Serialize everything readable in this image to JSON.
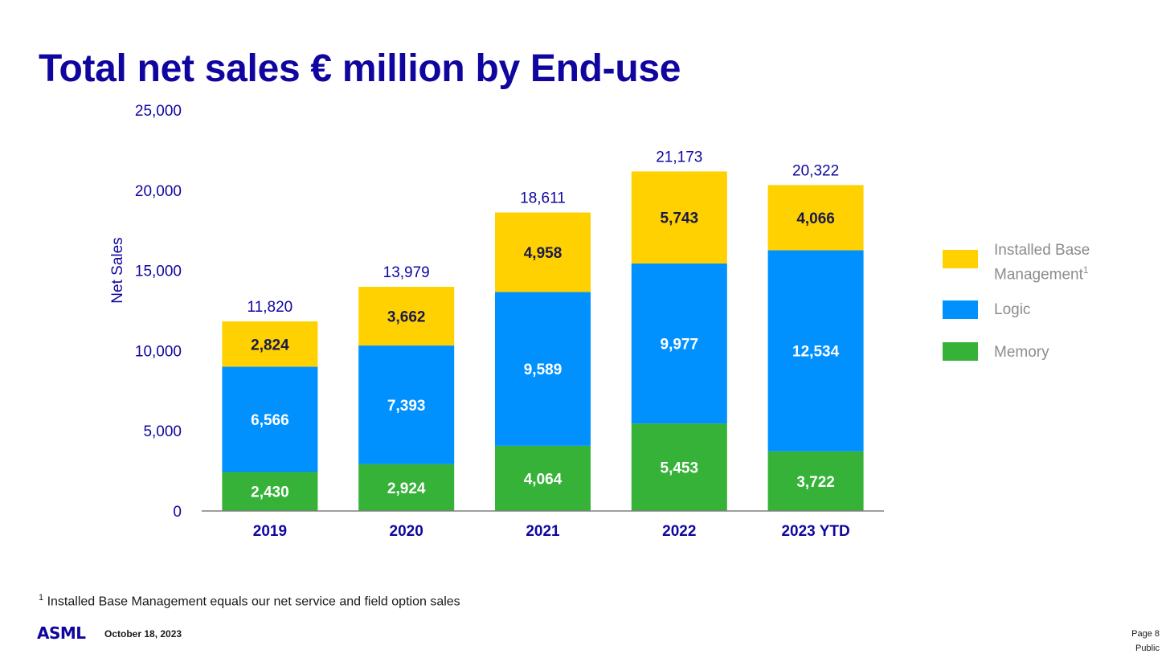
{
  "title": "Total net sales € million by End-use",
  "chart_data": {
    "type": "bar",
    "stacked": true,
    "categories": [
      "2019",
      "2020",
      "2021",
      "2022",
      "2023 YTD"
    ],
    "series": [
      {
        "name": "Memory",
        "values": [
          2430,
          2924,
          4064,
          5453,
          3722
        ],
        "color": "#35b237",
        "label_color": "#ffffff"
      },
      {
        "name": "Logic",
        "values": [
          6566,
          7393,
          9589,
          9977,
          12534
        ],
        "color": "#0091ff",
        "label_color": "#ffffff"
      },
      {
        "name": "Installed Base Management",
        "values": [
          2824,
          3662,
          4958,
          5743,
          4066
        ],
        "color": "#ffd100",
        "label_color": "#1a1a4a"
      }
    ],
    "value_labels": [
      [
        "2,430",
        "2,924",
        "4,064",
        "5,453",
        "3,722"
      ],
      [
        "6,566",
        "7,393",
        "9,589",
        "9,977",
        "12,534"
      ],
      [
        "2,824",
        "3,662",
        "4,958",
        "5,743",
        "4,066"
      ]
    ],
    "totals": [
      11820,
      13979,
      18611,
      21173,
      20322
    ],
    "total_labels": [
      "11,820",
      "13,979",
      "18,611",
      "21,173",
      "20,322"
    ],
    "ylabel": "Net Sales",
    "ylim": [
      0,
      25000
    ],
    "yticks": [
      0,
      5000,
      10000,
      15000,
      20000,
      25000
    ],
    "ytick_labels": [
      "0",
      "5,000",
      "10,000",
      "15,000",
      "20,000",
      "25,000"
    ],
    "grid": false,
    "legend_position": "right"
  },
  "legend": {
    "items": [
      {
        "label": "Installed Base Management",
        "sup": "1",
        "color": "#ffd100"
      },
      {
        "label": "Logic",
        "sup": "",
        "color": "#0091ff"
      },
      {
        "label": "Memory",
        "sup": "",
        "color": "#35b237"
      }
    ]
  },
  "footnote": {
    "marker": "1",
    "text": " Installed Base Management equals our net service and field option sales"
  },
  "footer": {
    "logo": "ASML",
    "date": "October 18, 2023",
    "page": "Page 8",
    "classification": "Public"
  }
}
